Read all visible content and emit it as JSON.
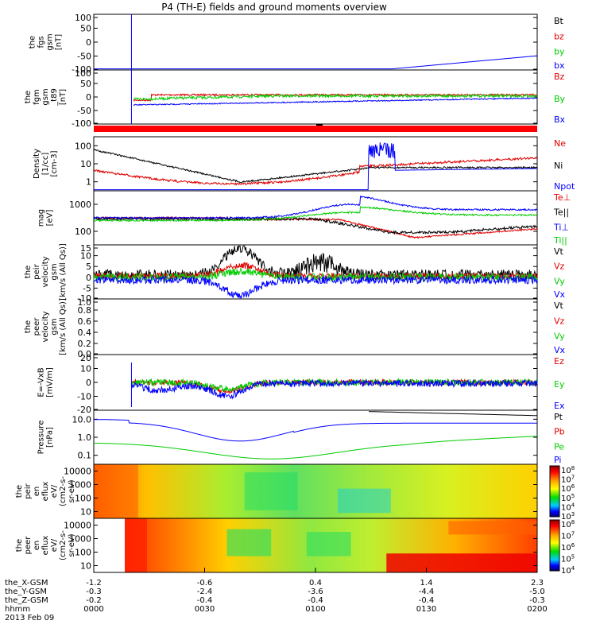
{
  "title": "P4 (TH-E) fields and ground moments overview",
  "colors": {
    "black": "#000000",
    "red": "#e00000",
    "green": "#00cc00",
    "blue": "#0000ff"
  },
  "chart_data": {
    "type": "line",
    "x_ticks": [
      "0000",
      "0030",
      "0100",
      "0130",
      "0200"
    ],
    "ephemeris": {
      "labels": [
        "the_X-GSM",
        "the_Y-GSM",
        "the_Z-GSM",
        "hhmm",
        "2013 Feb 09"
      ],
      "rows": [
        [
          "-1.2",
          "-0.6",
          "0.4",
          "1.4",
          "2.3"
        ],
        [
          "-0.3",
          "-2.4",
          "-3.6",
          "-4.4",
          "-5.0"
        ],
        [
          "-0.2",
          "-0.4",
          "-0.4",
          "-0.4",
          "-0.3"
        ],
        [
          "0000",
          "0030",
          "0100",
          "0130",
          "0200"
        ]
      ]
    },
    "panels": [
      {
        "ylabel": "the\nfgs\ngsm\n[nT]",
        "yticks": [
          "100",
          "50",
          "0",
          "-50",
          "-100"
        ],
        "legend": [
          "Bt",
          "bz",
          "by",
          "bx"
        ],
        "legend_colors": [
          "black",
          "red",
          "green",
          "blue"
        ]
      },
      {
        "ylabel": "the\nfgm\ngsm\n_t89\n[nT]",
        "yticks": [
          "100",
          "50",
          "0",
          "-50",
          "-100"
        ],
        "legend": [
          "Bz",
          "By",
          "Bx"
        ],
        "legend_colors": [
          "red",
          "green",
          "blue"
        ]
      },
      {
        "ylabel": "Density\n[1/cc]\n[cm-3]",
        "yticks": [
          "100",
          "10",
          "1"
        ],
        "legend": [
          "Ne",
          "Ni",
          "Npot"
        ],
        "legend_colors": [
          "red",
          "black",
          "blue"
        ]
      },
      {
        "ylabel": "mag\n[eV]",
        "yticks": [
          "1000",
          "100"
        ],
        "legend": [
          "Te⊥",
          "Te||",
          "Ti⊥",
          "Ti||"
        ],
        "legend_colors": [
          "red",
          "black",
          "blue",
          "green"
        ]
      },
      {
        "ylabel": "the\npeir\nvelocity\ngsm\n[km/s (All Qs)]",
        "yticks": [
          "15",
          "10",
          "5",
          "0",
          "-5",
          "-10"
        ],
        "legend": [
          "Vt",
          "Vz",
          "Vy",
          "Vx"
        ],
        "legend_colors": [
          "black",
          "red",
          "green",
          "blue"
        ]
      },
      {
        "ylabel": "the\npeer\nvelocity\ngsm\n[km/s (All Qs)]",
        "yticks": [
          "1.0",
          "0.8",
          "0.6",
          "0.4",
          "0.2",
          "0.0"
        ],
        "legend": [
          "Vt",
          "Vz",
          "Vy",
          "Vx"
        ],
        "legend_colors": [
          "black",
          "red",
          "green",
          "blue"
        ]
      },
      {
        "ylabel": "E=-VxB\n[mV/m]",
        "yticks": [
          "20",
          "10",
          "0",
          "-10",
          "-20"
        ],
        "legend": [
          "Ez",
          "Ey",
          "Ex"
        ],
        "legend_colors": [
          "red",
          "green",
          "blue"
        ]
      },
      {
        "ylabel": "Pressure\n[nPa]",
        "yticks": [
          "10.0",
          "1.0",
          "0.1"
        ],
        "legend": [
          "Pt",
          "Pb",
          "Pe",
          "Pi"
        ],
        "legend_colors": [
          "black",
          "red",
          "green",
          "blue"
        ]
      },
      {
        "ylabel": "the\npeir\nen\neflux\neV/\n(cm2-s-\nsr-eV)",
        "yticks": [
          "10000",
          "1000",
          "100",
          "10"
        ],
        "colorbar": [
          "10^8",
          "10^7",
          "10^6",
          "10^5",
          "10^4",
          "10^3"
        ]
      },
      {
        "ylabel": "the\npeer\nen\neflux\neV/\n(cm2-s-\nsr-eV)",
        "yticks": [
          "10000",
          "1000",
          "100",
          "10"
        ],
        "colorbar": [
          "10^8",
          "10^7",
          "10^6",
          "10^5",
          "10^4"
        ]
      }
    ]
  }
}
